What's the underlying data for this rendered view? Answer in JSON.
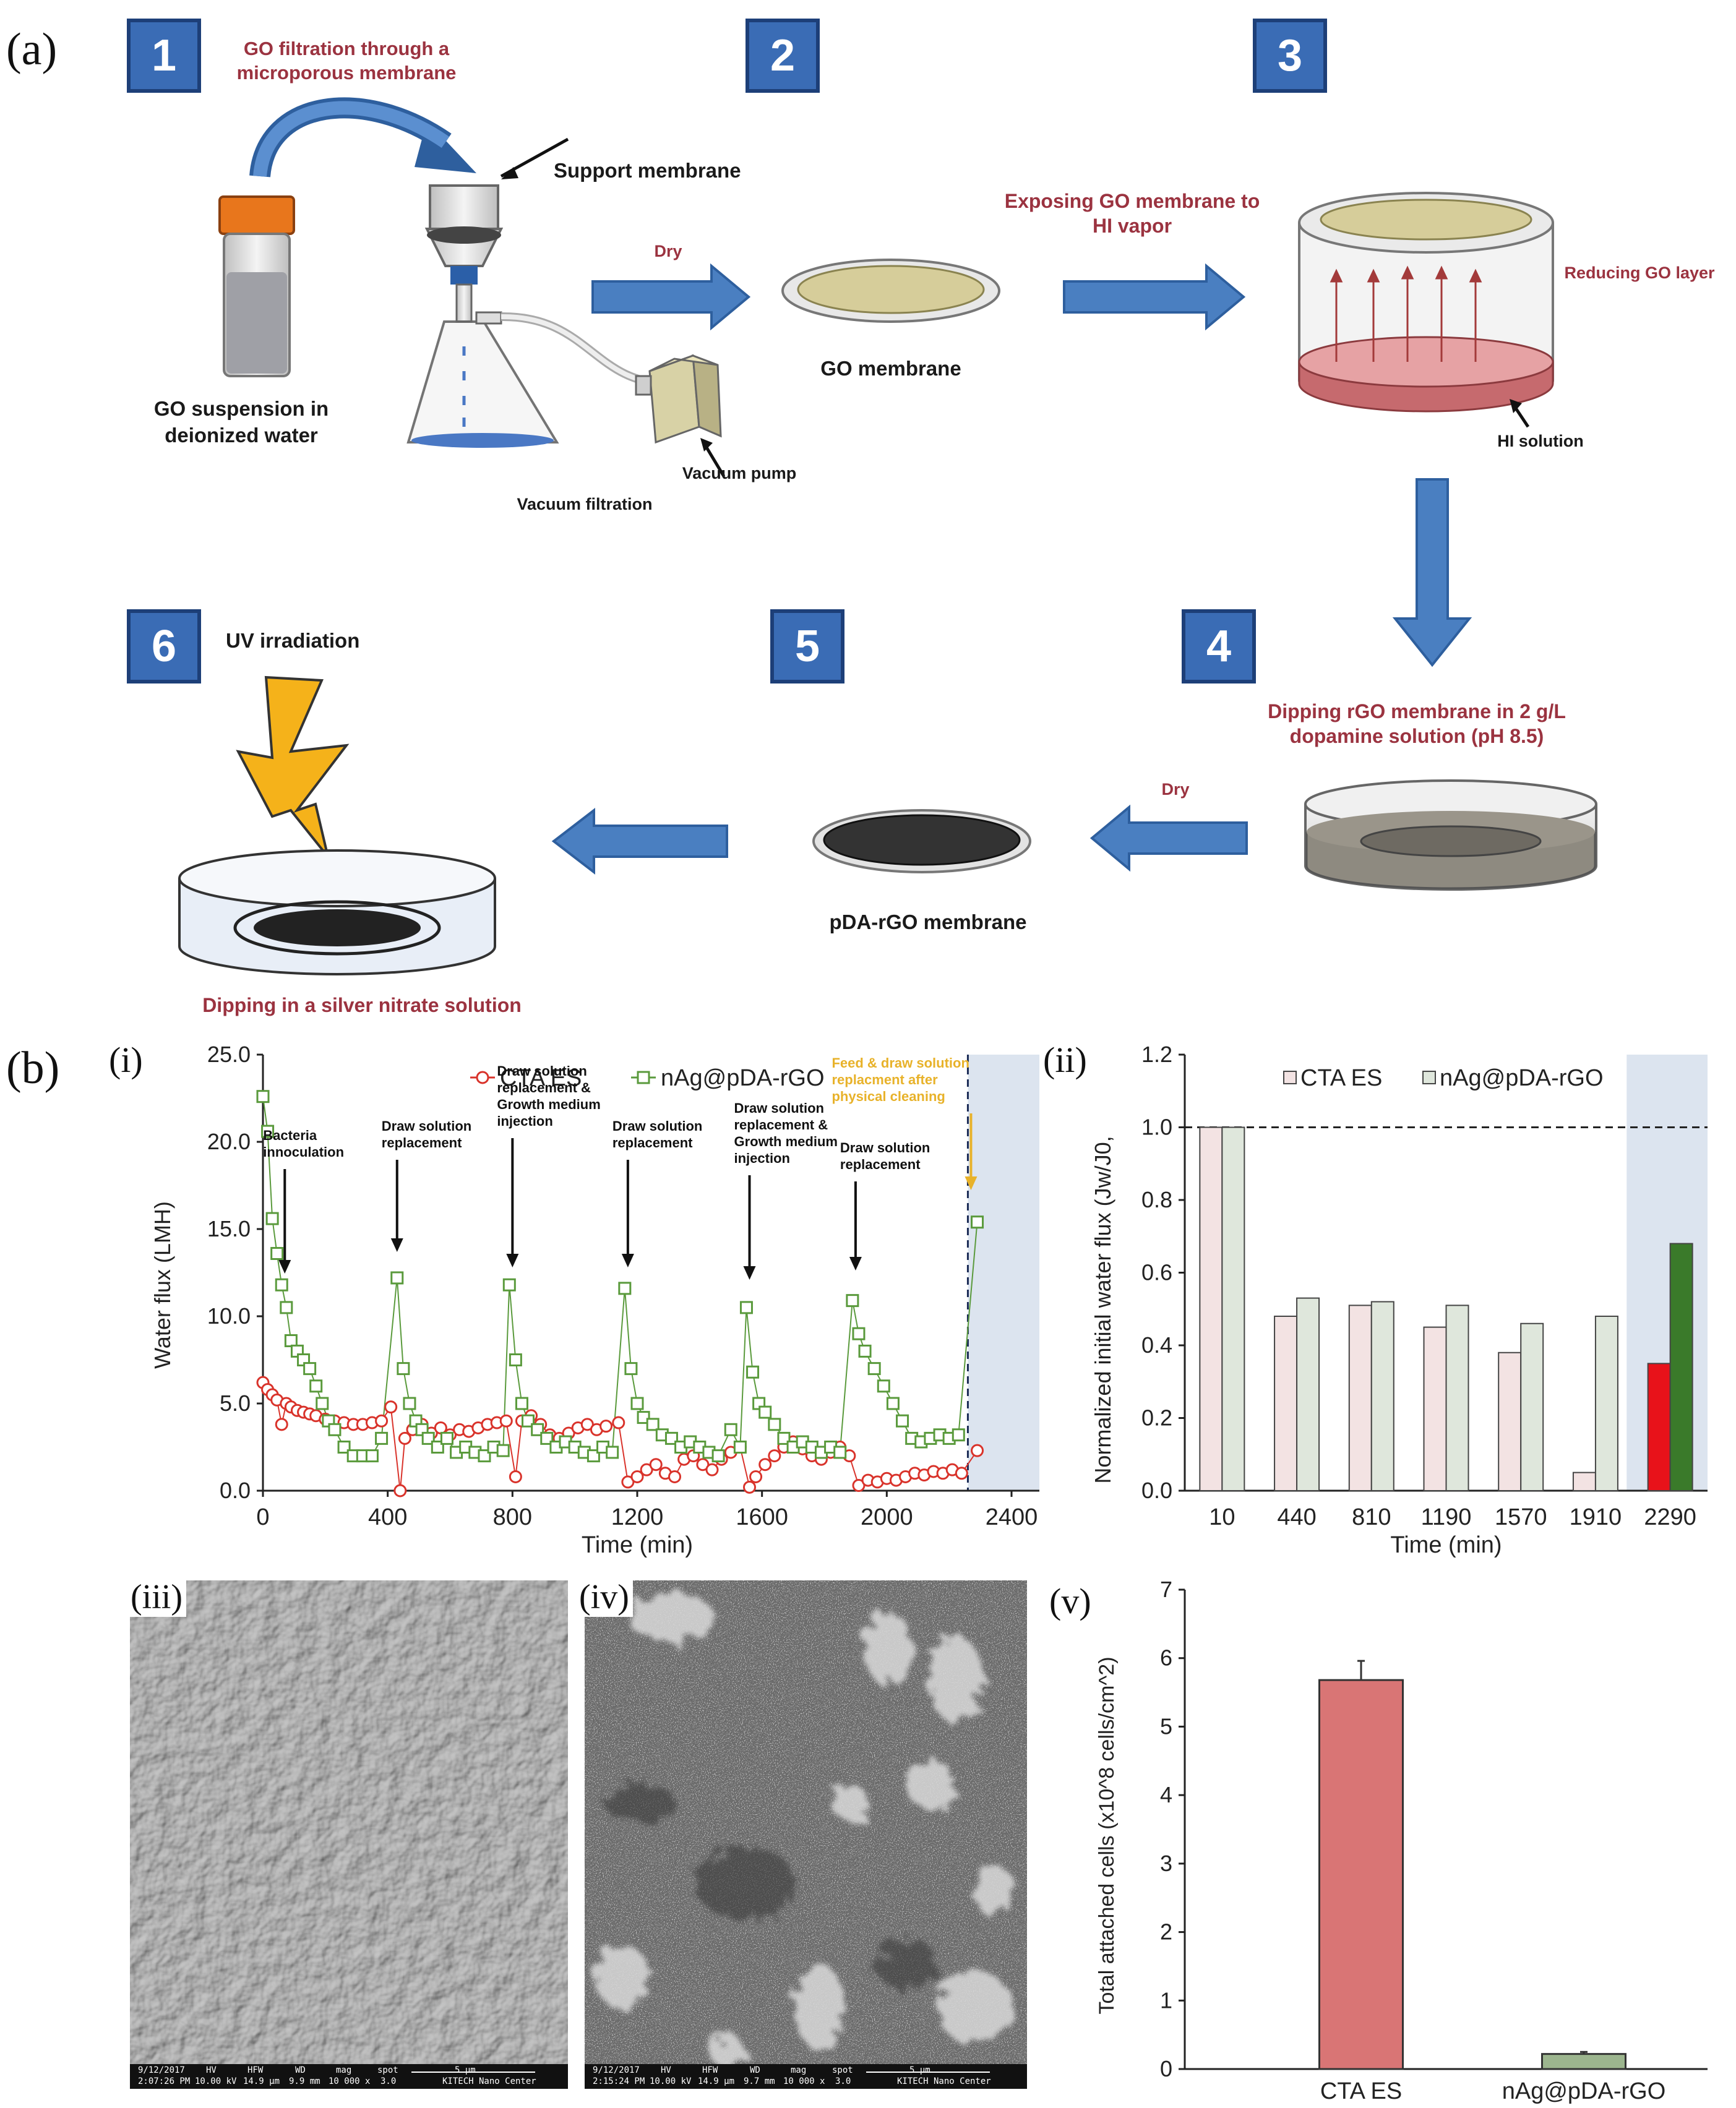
{
  "panels": {
    "a": "(a)",
    "b": "(b)",
    "i": "(i)",
    "ii": "(ii)",
    "iii": "(iii)",
    "iv": "(iv)",
    "v": "(v)"
  },
  "steps": {
    "s1": "1",
    "s2": "2",
    "s3": "3",
    "s4": "4",
    "s5": "5",
    "s6": "6"
  },
  "labels": {
    "go_filtration": "GO filtration through a microporous membrane",
    "support_membrane": "Support membrane",
    "go_suspension": "GO suspension in deionized water",
    "vacuum_pump": "Vacuum pump",
    "vacuum_filtration": "Vacuum filtration",
    "dry1": "Dry",
    "go_membrane": "GO membrane",
    "exposing": "Exposing GO membrane to HI vapor",
    "reducing": "Reducing GO layer",
    "hi_solution": "HI solution",
    "dipping_rgo": "Dipping rGO membrane in 2 g/L dopamine solution (pH 8.5)",
    "dry2": "Dry",
    "pda_membrane": "pDA-rGO membrane",
    "uv": "UV irradiation",
    "dipping_silver": "Dipping in a silver nitrate solution"
  },
  "colors": {
    "step_blue": "#3a6cb5",
    "arrow_blue": "#4a7fc1",
    "cta_red": "#d9332b",
    "nag_green": "#5a9a3c",
    "cta_bar": "#f3e3e3",
    "nag_bar": "#dfe7dc",
    "shade": "#dce4ef"
  },
  "chart_data": [
    {
      "type": "scatter",
      "ylabel": "Water flux (LMH)",
      "xlabel": "Time (min)",
      "xlim": [
        0,
        2400
      ],
      "ylim": [
        0,
        25
      ],
      "xticks": [
        "0",
        "400",
        "800",
        "1200",
        "1600",
        "2000",
        "2400"
      ],
      "yticks": [
        "0.0",
        "5.0",
        "10.0",
        "15.0",
        "20.0",
        "25.0"
      ],
      "legend": [
        "CTA ES",
        "nAg@pDA-rGO"
      ],
      "annotations": [
        {
          "text": "Bacteria innoculation",
          "x": 70
        },
        {
          "text": "Draw solution replacement",
          "x": 430
        },
        {
          "text": "Draw solution replacement & Growth medium injection",
          "x": 800
        },
        {
          "text": "Draw solution replacement",
          "x": 1170
        },
        {
          "text": "Draw solution replacement & Growth medium injection",
          "x": 1560
        },
        {
          "text": "Draw solution replacement",
          "x": 1900
        },
        {
          "text": "Feed & draw solution replacment after physical cleaning",
          "x": 2270
        }
      ],
      "cta_series": [
        [
          0,
          6.2
        ],
        [
          15,
          5.8
        ],
        [
          30,
          5.5
        ],
        [
          45,
          5.2
        ],
        [
          60,
          3.8
        ],
        [
          75,
          5.0
        ],
        [
          90,
          4.8
        ],
        [
          110,
          4.6
        ],
        [
          130,
          4.5
        ],
        [
          150,
          4.4
        ],
        [
          170,
          4.3
        ],
        [
          200,
          4.1
        ],
        [
          230,
          4.0
        ],
        [
          260,
          3.9
        ],
        [
          290,
          3.8
        ],
        [
          320,
          3.8
        ],
        [
          350,
          3.9
        ],
        [
          380,
          4.0
        ],
        [
          410,
          4.8
        ],
        [
          440,
          0.0
        ],
        [
          455,
          3.0
        ],
        [
          480,
          3.5
        ],
        [
          510,
          3.8
        ],
        [
          540,
          3.3
        ],
        [
          570,
          3.6
        ],
        [
          600,
          3.2
        ],
        [
          630,
          3.5
        ],
        [
          660,
          3.4
        ],
        [
          690,
          3.6
        ],
        [
          720,
          3.8
        ],
        [
          750,
          3.9
        ],
        [
          780,
          4.0
        ],
        [
          810,
          0.8
        ],
        [
          830,
          4.0
        ],
        [
          860,
          4.3
        ],
        [
          890,
          3.8
        ],
        [
          920,
          3.2
        ],
        [
          950,
          3.0
        ],
        [
          980,
          3.3
        ],
        [
          1010,
          3.6
        ],
        [
          1040,
          3.8
        ],
        [
          1070,
          3.5
        ],
        [
          1100,
          3.7
        ],
        [
          1140,
          3.9
        ],
        [
          1170,
          0.5
        ],
        [
          1200,
          0.8
        ],
        [
          1230,
          1.2
        ],
        [
          1260,
          1.5
        ],
        [
          1290,
          1.0
        ],
        [
          1320,
          0.8
        ],
        [
          1350,
          1.8
        ],
        [
          1380,
          2.0
        ],
        [
          1410,
          1.5
        ],
        [
          1440,
          1.2
        ],
        [
          1470,
          1.8
        ],
        [
          1500,
          2.2
        ],
        [
          1530,
          2.5
        ],
        [
          1560,
          0.2
        ],
        [
          1580,
          0.8
        ],
        [
          1610,
          1.5
        ],
        [
          1640,
          2.0
        ],
        [
          1670,
          2.5
        ],
        [
          1700,
          2.8
        ],
        [
          1730,
          2.4
        ],
        [
          1760,
          2.0
        ],
        [
          1790,
          1.8
        ],
        [
          1820,
          2.2
        ],
        [
          1850,
          2.5
        ],
        [
          1880,
          2.0
        ],
        [
          1910,
          0.3
        ],
        [
          1940,
          0.6
        ],
        [
          1970,
          0.5
        ],
        [
          2000,
          0.7
        ],
        [
          2030,
          0.6
        ],
        [
          2060,
          0.8
        ],
        [
          2090,
          1.0
        ],
        [
          2120,
          0.9
        ],
        [
          2150,
          1.1
        ],
        [
          2180,
          1.0
        ],
        [
          2210,
          1.2
        ],
        [
          2240,
          1.0
        ],
        [
          2290,
          2.3
        ]
      ],
      "nag_series": [
        [
          0,
          22.6
        ],
        [
          15,
          20.6
        ],
        [
          30,
          15.6
        ],
        [
          45,
          13.6
        ],
        [
          60,
          11.8
        ],
        [
          75,
          10.5
        ],
        [
          90,
          8.6
        ],
        [
          110,
          8.0
        ],
        [
          130,
          7.5
        ],
        [
          150,
          7.0
        ],
        [
          170,
          6.0
        ],
        [
          190,
          5.0
        ],
        [
          210,
          4.0
        ],
        [
          230,
          3.5
        ],
        [
          260,
          2.5
        ],
        [
          290,
          2.0
        ],
        [
          320,
          2.0
        ],
        [
          350,
          2.0
        ],
        [
          380,
          3.0
        ],
        [
          430,
          12.2
        ],
        [
          450,
          7.0
        ],
        [
          470,
          5.0
        ],
        [
          490,
          4.0
        ],
        [
          510,
          3.5
        ],
        [
          530,
          3.0
        ],
        [
          560,
          2.5
        ],
        [
          590,
          3.0
        ],
        [
          620,
          2.2
        ],
        [
          650,
          2.5
        ],
        [
          680,
          2.2
        ],
        [
          710,
          2.0
        ],
        [
          740,
          2.5
        ],
        [
          770,
          2.3
        ],
        [
          790,
          11.8
        ],
        [
          810,
          7.5
        ],
        [
          830,
          5.0
        ],
        [
          850,
          4.0
        ],
        [
          880,
          3.5
        ],
        [
          910,
          3.0
        ],
        [
          940,
          2.5
        ],
        [
          970,
          2.8
        ],
        [
          1000,
          2.5
        ],
        [
          1030,
          2.2
        ],
        [
          1060,
          2.0
        ],
        [
          1090,
          2.5
        ],
        [
          1120,
          2.2
        ],
        [
          1160,
          11.6
        ],
        [
          1180,
          7.0
        ],
        [
          1200,
          5.0
        ],
        [
          1220,
          4.2
        ],
        [
          1250,
          3.8
        ],
        [
          1280,
          3.2
        ],
        [
          1310,
          3.0
        ],
        [
          1340,
          2.5
        ],
        [
          1370,
          2.8
        ],
        [
          1400,
          2.5
        ],
        [
          1430,
          2.2
        ],
        [
          1460,
          2.0
        ],
        [
          1500,
          3.5
        ],
        [
          1530,
          2.5
        ],
        [
          1550,
          10.5
        ],
        [
          1570,
          6.8
        ],
        [
          1590,
          5.0
        ],
        [
          1610,
          4.5
        ],
        [
          1640,
          3.8
        ],
        [
          1670,
          3.0
        ],
        [
          1700,
          2.5
        ],
        [
          1730,
          2.8
        ],
        [
          1760,
          2.5
        ],
        [
          1790,
          2.2
        ],
        [
          1820,
          2.5
        ],
        [
          1850,
          2.2
        ],
        [
          1890,
          10.9
        ],
        [
          1910,
          9.0
        ],
        [
          1930,
          8.0
        ],
        [
          1960,
          7.0
        ],
        [
          1990,
          6.0
        ],
        [
          2020,
          5.0
        ],
        [
          2050,
          4.0
        ],
        [
          2080,
          3.0
        ],
        [
          2110,
          2.8
        ],
        [
          2140,
          3.0
        ],
        [
          2170,
          3.2
        ],
        [
          2200,
          3.0
        ],
        [
          2230,
          3.2
        ],
        [
          2290,
          15.4
        ]
      ],
      "shade_from": 2260
    },
    {
      "type": "bar",
      "ylabel": "Normalized initial water flux (Jw/J0,",
      "xlabel": "Time (min)",
      "categories": [
        "10",
        "440",
        "810",
        "1190",
        "1570",
        "1910",
        "2290"
      ],
      "ylim": [
        0,
        1.2
      ],
      "yticks": [
        "0.0",
        "0.2",
        "0.4",
        "0.6",
        "0.8",
        "1.0",
        "1.2"
      ],
      "legend": [
        "CTA ES",
        "nAg@pDA-rGO"
      ],
      "cta_values": [
        1.0,
        0.48,
        0.51,
        0.45,
        0.38,
        0.05,
        0.35
      ],
      "nag_values": [
        1.0,
        0.53,
        0.52,
        0.51,
        0.46,
        0.48,
        0.68
      ],
      "reference_line": 1.0
    },
    {
      "type": "bar",
      "ylabel": "Total attached cells (x10^8 cells/cm^2)",
      "categories": [
        "CTA ES",
        "nAg@pDA-rGO"
      ],
      "values": [
        5.68,
        0.22
      ],
      "errors": [
        0.28,
        0.03
      ],
      "ylim": [
        0,
        7
      ],
      "yticks": [
        "0",
        "1",
        "2",
        "3",
        "4",
        "5",
        "6",
        "7"
      ]
    }
  ],
  "sem": {
    "left": {
      "date": "9/12/2017",
      "time": "2:07:26 PM",
      "hv": "10.00 kV",
      "hfw": "14.9 μm",
      "wd": "9.9 mm",
      "mag": "10 000 x",
      "spot": "3.0",
      "scale": "5 μm",
      "center": "KITECH Nano Center"
    },
    "right": {
      "date": "9/12/2017",
      "time": "2:15:24 PM",
      "hv": "10.00 kV",
      "hfw": "14.9 μm",
      "wd": "9.7 mm",
      "mag": "10 000 x",
      "spot": "3.0",
      "scale": "5 μm",
      "center": "KITECH Nano Center"
    },
    "headers": {
      "hv": "HV",
      "hfw": "HFW",
      "wd": "WD",
      "mag": "mag",
      "spot": "spot"
    }
  }
}
